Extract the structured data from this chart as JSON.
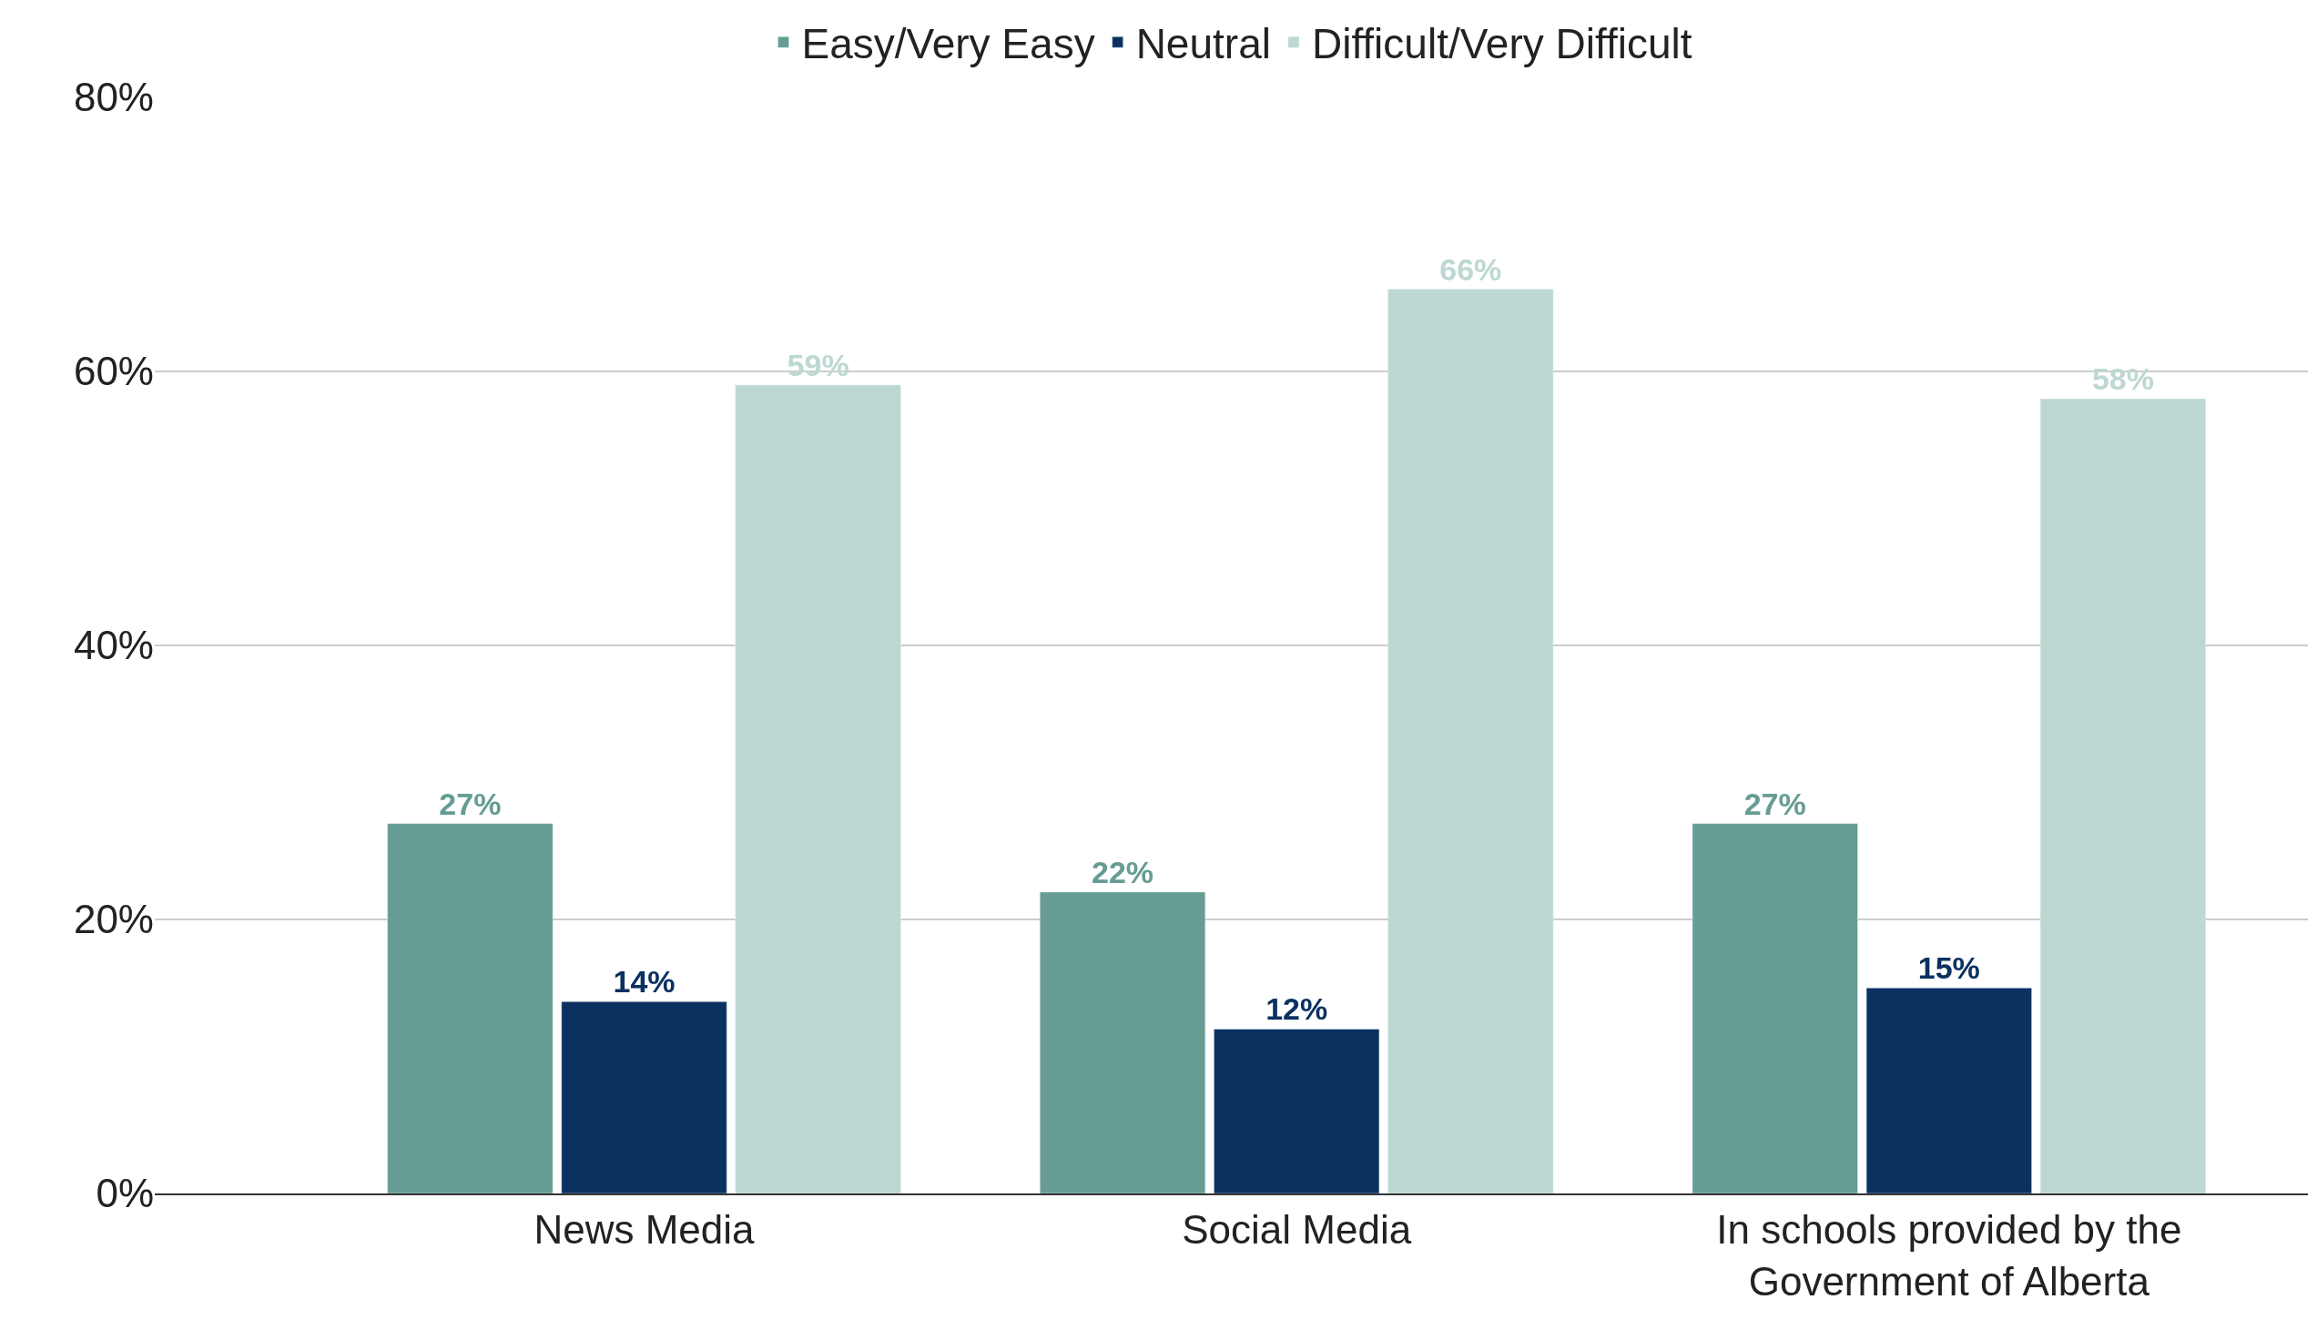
{
  "chart_data": {
    "type": "bar",
    "categories": [
      "News Media",
      "Social Media",
      "In schools provided by the Government of Alberta"
    ],
    "series": [
      {
        "name": "Easy/Very Easy",
        "color": "#669c94",
        "values": [
          27,
          22,
          27
        ],
        "value_labels": [
          "27%",
          "22%",
          "27%"
        ]
      },
      {
        "name": "Neutral",
        "color": "#0b3160",
        "values": [
          14,
          12,
          15
        ],
        "value_labels": [
          "14%",
          "12%",
          "15%"
        ]
      },
      {
        "name": "Difficult/Very Difficult",
        "color": "#bdd8d3",
        "values": [
          59,
          66,
          58
        ],
        "value_labels": [
          "59%",
          "66%",
          "58%"
        ]
      }
    ],
    "ylim": [
      0,
      80
    ],
    "yticks": [
      {
        "value": 0,
        "label": "0%"
      },
      {
        "value": 20,
        "label": "20%"
      },
      {
        "value": 40,
        "label": "40%"
      },
      {
        "value": 60,
        "label": "60%"
      },
      {
        "value": 80,
        "label": "80%"
      }
    ],
    "grid": "y",
    "legend": "top"
  }
}
